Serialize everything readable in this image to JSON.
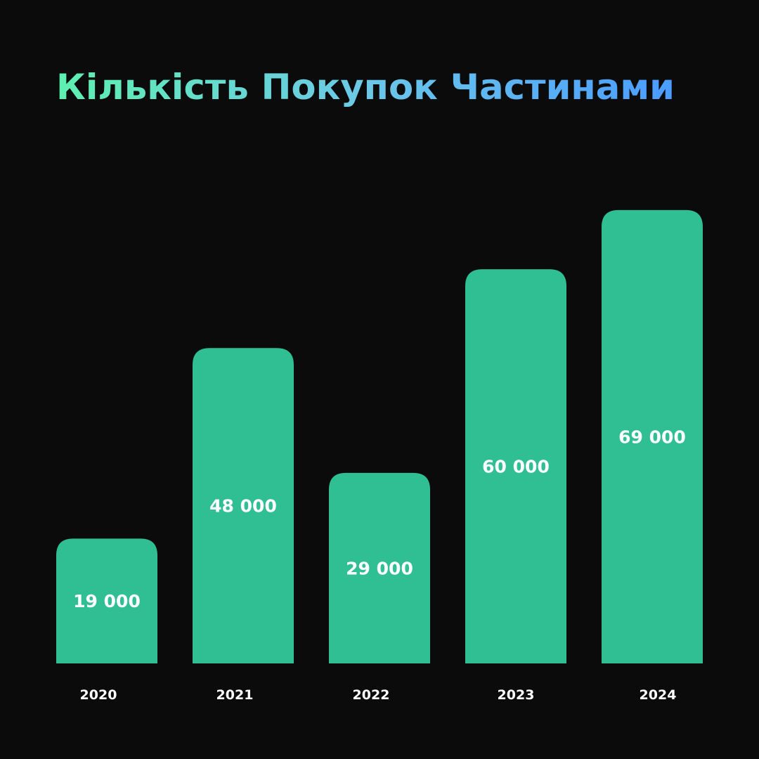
{
  "colors": {
    "background": "#0b0b0b",
    "bar": "#30bf93",
    "text": "#ffffff",
    "title_gradient": [
      "#5ef0b0",
      "#6cc8e8",
      "#4a9cff"
    ]
  },
  "chart_data": {
    "type": "bar",
    "title": "Кількість Покупок Частинами",
    "xlabel": "",
    "ylabel": "",
    "categories": [
      "2020",
      "2021",
      "2022",
      "2023",
      "2024"
    ],
    "values": [
      19000,
      48000,
      29000,
      60000,
      69000
    ],
    "value_labels": [
      "19 000",
      "48 000",
      "29 000",
      "60 000",
      "69 000"
    ],
    "ylim": [
      0,
      86000
    ],
    "grid": false,
    "legend": "none"
  }
}
